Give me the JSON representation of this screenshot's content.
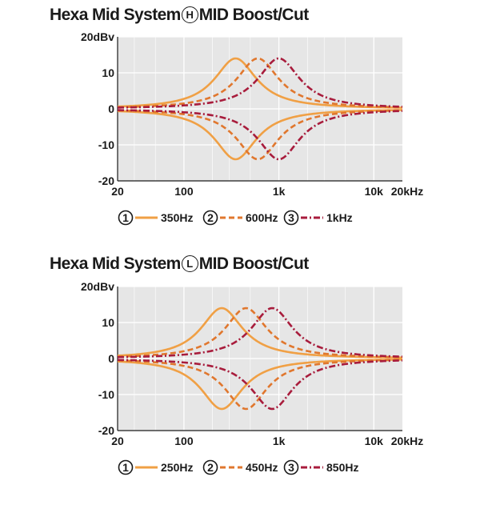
{
  "panels": [
    {
      "title_prefix": "Hexa Mid System",
      "title_mark": "H",
      "title_suffix": "MID Boost/Cut"
    },
    {
      "title_prefix": "Hexa Mid System",
      "title_mark": "L",
      "title_suffix": "MID Boost/Cut"
    }
  ],
  "colors": {
    "series1": "#f0a045",
    "series2": "#e0772e",
    "series3": "#a81c3c",
    "plot_bg": "#e6e6e6",
    "grid": "#ffffff"
  },
  "chart_data": [
    {
      "type": "line",
      "title": "Hexa Mid System H MID Boost/Cut",
      "x_scale": "log",
      "xlim": [
        20,
        20000
      ],
      "ylim": [
        -20,
        20
      ],
      "x_ticks": [
        20,
        100,
        1000,
        10000,
        20000
      ],
      "x_tick_labels": [
        "20",
        "100",
        "1k",
        "10k",
        "20kHz"
      ],
      "y_ticks": [
        20,
        10,
        0,
        -10,
        -20
      ],
      "y_tick_labels": [
        "20dBv",
        "10",
        "0",
        "-10",
        "-20"
      ],
      "grid": true,
      "legend": "bottom",
      "series": [
        {
          "name": "350Hz",
          "marker": "1",
          "center_hz": 350,
          "peak_db": 14,
          "style": "solid",
          "color": "#f0a045"
        },
        {
          "name": "600Hz",
          "marker": "2",
          "center_hz": 600,
          "peak_db": 14,
          "style": "dashed",
          "color": "#e0772e"
        },
        {
          "name": "1kHz",
          "marker": "3",
          "center_hz": 1000,
          "peak_db": 14,
          "style": "dash-dot",
          "color": "#a81c3c"
        }
      ],
      "curves": "boost and cut curve per series, symmetric about 0 dB"
    },
    {
      "type": "line",
      "title": "Hexa Mid System L MID Boost/Cut",
      "x_scale": "log",
      "xlim": [
        20,
        20000
      ],
      "ylim": [
        -20,
        20
      ],
      "x_ticks": [
        20,
        100,
        1000,
        10000,
        20000
      ],
      "x_tick_labels": [
        "20",
        "100",
        "1k",
        "10k",
        "20kHz"
      ],
      "y_ticks": [
        20,
        10,
        0,
        -10,
        -20
      ],
      "y_tick_labels": [
        "20dBv",
        "10",
        "0",
        "-10",
        "-20"
      ],
      "grid": true,
      "legend": "bottom",
      "series": [
        {
          "name": "250Hz",
          "marker": "1",
          "center_hz": 250,
          "peak_db": 14,
          "style": "solid",
          "color": "#f0a045"
        },
        {
          "name": "450Hz",
          "marker": "2",
          "center_hz": 450,
          "peak_db": 14,
          "style": "dashed",
          "color": "#e0772e"
        },
        {
          "name": "850Hz",
          "marker": "3",
          "center_hz": 850,
          "peak_db": 14,
          "style": "dash-dot",
          "color": "#a81c3c"
        }
      ],
      "curves": "boost and cut curve per series, symmetric about 0 dB"
    }
  ]
}
